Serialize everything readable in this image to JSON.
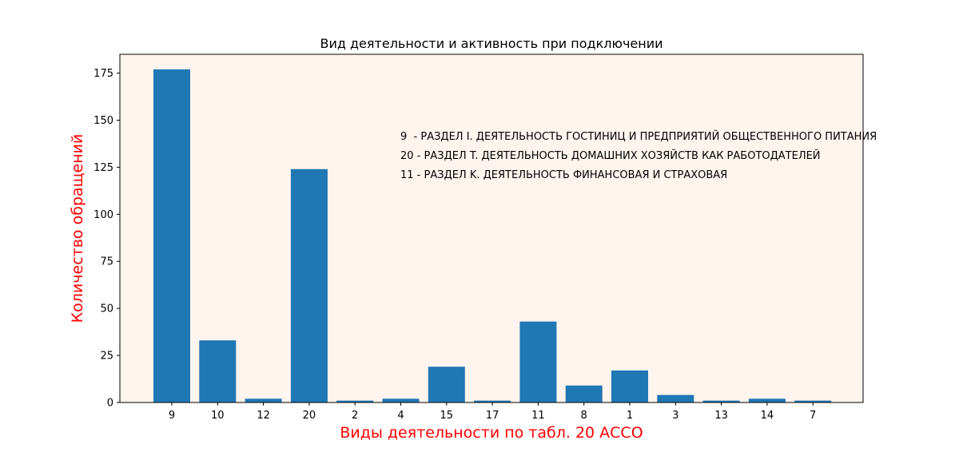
{
  "chart_data": {
    "type": "bar",
    "title": "Вид деятельности и активность при подключении",
    "xlabel": "Виды деятельности по табл. 20 АССО",
    "ylabel": "Количество обращений",
    "categories": [
      "9",
      "10",
      "12",
      "20",
      "2",
      "4",
      "15",
      "17",
      "11",
      "8",
      "1",
      "3",
      "13",
      "14",
      "7"
    ],
    "values": [
      177,
      33,
      2,
      124,
      1,
      2,
      19,
      1,
      43,
      9,
      17,
      4,
      1,
      2,
      1
    ],
    "ylim": [
      0,
      185
    ],
    "yticks": [
      0,
      25,
      50,
      75,
      100,
      125,
      150,
      175
    ],
    "grid": false,
    "annotations": [
      "9  - РАЗДЕЛ I. ДЕЯТЕЛЬНОСТЬ ГОСТИНИЦ И ПРЕДПРИЯТИЙ ОБЩЕСТВЕННОГО ПИТАНИЯ",
      "20 - РАЗДЕЛ T. ДЕЯТЕЛЬНОСТЬ ДОМАШНИХ ХОЗЯЙСТВ КАК РАБОТОДАТЕЛЕЙ",
      "11 - РАЗДЕЛ K. ДЕЯТЕЛЬНОСТЬ ФИНАНСОВАЯ И СТРАХОВАЯ"
    ],
    "colors": {
      "bar": "#1f77b4",
      "plot_background": "#fff4ee",
      "axis_label": "#ff0000"
    }
  }
}
